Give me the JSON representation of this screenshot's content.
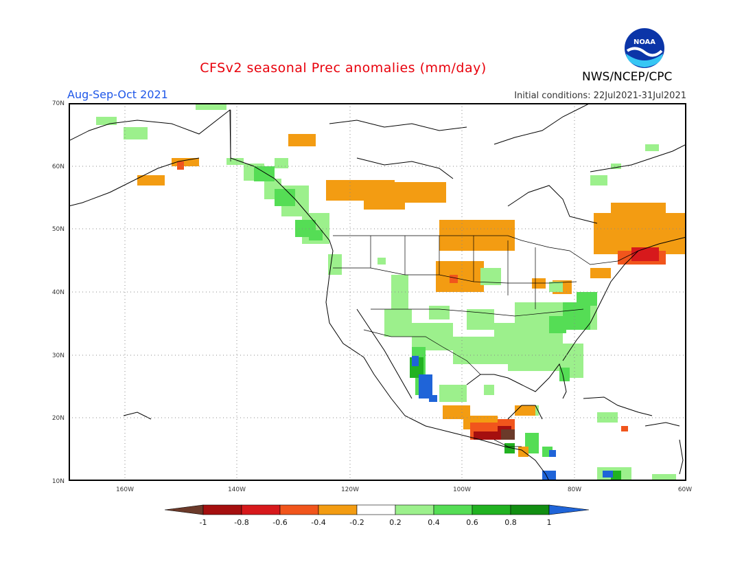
{
  "header": {
    "title": "CFSv2 seasonal Prec anomalies (mm/day)",
    "season": "Aug-Sep-Oct 2021",
    "initial_conditions": "Initial conditions: 22Jul2021-31Jul2021",
    "agency": "NWS/NCEP/CPC",
    "logo_text": "NOAA"
  },
  "map": {
    "lat_labels": [
      "70N",
      "60N",
      "50N",
      "40N",
      "30N",
      "20N",
      "10N"
    ],
    "lon_labels": [
      "160W",
      "140W",
      "120W",
      "100W",
      "80W",
      "60W"
    ],
    "lat_range": [
      10,
      70
    ],
    "lon_range": [
      -170,
      -60
    ],
    "grid": "dotted"
  },
  "colorbar": {
    "tick_labels": [
      "-1",
      "-0.8",
      "-0.6",
      "-0.4",
      "-0.2",
      "0.2",
      "0.4",
      "0.6",
      "0.8",
      "1"
    ],
    "colors": {
      "lt_neg1": "#6b3a2a",
      "neg1_neg08": "#a50f0f",
      "neg08_neg06": "#d7191c",
      "neg06_neg04": "#f1551c",
      "neg04_neg02": "#f39c12",
      "neg02_pos02": "#ffffff",
      "pos02_pos04": "#9cf08c",
      "pos04_pos06": "#55dd55",
      "pos06_pos08": "#21b221",
      "pos08_pos1": "#128e12",
      "gt_1": "#1f64d8"
    }
  }
}
